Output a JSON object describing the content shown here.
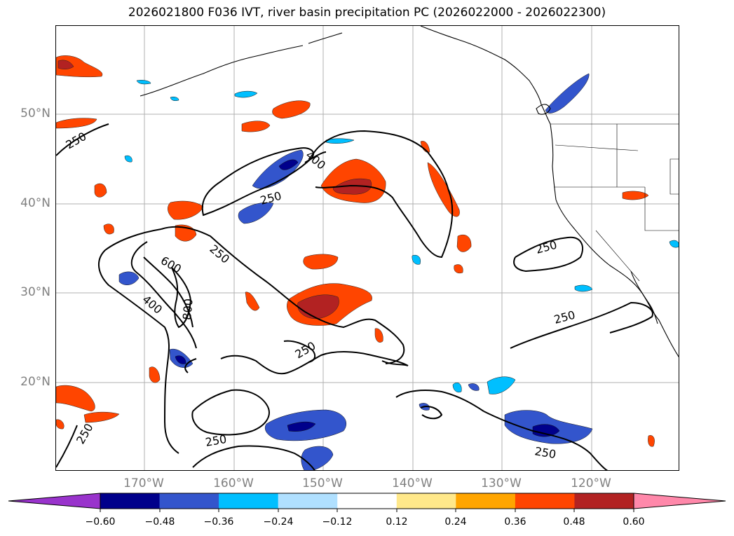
{
  "title": "2026021800 F036 IVT, river basin precipitation PC (2026022000 - 2026022300)",
  "map": {
    "lat_labels": [
      "50°N",
      "40°N",
      "30°N",
      "20°N"
    ],
    "lon_labels": [
      "170°W",
      "160°W",
      "150°W",
      "140°W",
      "130°W",
      "120°W"
    ],
    "contour_labels": [
      "250",
      "250",
      "400",
      "250",
      "250",
      "600",
      "400",
      "800",
      "250",
      "250",
      "250",
      "250",
      "250",
      "250"
    ],
    "contour_levels": [
      250,
      400,
      600,
      800
    ]
  },
  "colorbar": {
    "ticks": [
      "−0.60",
      "−0.48",
      "−0.36",
      "−0.24",
      "−0.12",
      "0.12",
      "0.24",
      "0.36",
      "0.48",
      "0.60"
    ],
    "colors": [
      "#9933cc",
      "#00008b",
      "#3355cc",
      "#00bfff",
      "#b0e0ff",
      "#ffffff",
      "#ffe88a",
      "#ffa500",
      "#ff4500",
      "#b22222",
      "#ff88aa"
    ]
  }
}
